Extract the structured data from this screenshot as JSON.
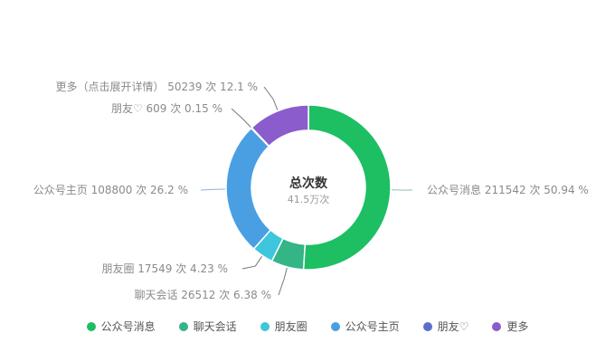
{
  "chart_data": {
    "type": "pie",
    "variant": "donut",
    "center": {
      "title": "总次数",
      "subtitle": "41.5万次"
    },
    "unit": "次",
    "slices": [
      {
        "name": "公众号消息",
        "value": 211542,
        "percent": 50.94,
        "label": "公众号消息 211542 次 50.94 %",
        "color": "#1dbf62"
      },
      {
        "name": "聊天会话",
        "value": 26512,
        "percent": 6.38,
        "label": "聊天会话 26512 次 6.38 %",
        "color": "#33b585"
      },
      {
        "name": "朋友圈",
        "value": 17549,
        "percent": 4.23,
        "label": "朋友圈 17549 次 4.23 %",
        "color": "#3ec6dc"
      },
      {
        "name": "公众号主页",
        "value": 108800,
        "percent": 26.2,
        "label": "公众号主页 108800 次 26.2 %",
        "color": "#4a9fe3"
      },
      {
        "name": "朋友♡",
        "value": 609,
        "percent": 0.15,
        "label": "朋友♡ 609 次 0.15 %",
        "color": "#5a6fc9"
      },
      {
        "name": "更多",
        "value": 50239,
        "percent": 12.1,
        "label": "更多（点击展开详情） 50239 次 12.1 %",
        "color": "#8b5ccc"
      }
    ],
    "legend_position": "bottom"
  },
  "legend": {
    "items": [
      {
        "label": "公众号消息",
        "color": "#1dbf62"
      },
      {
        "label": "聊天会话",
        "color": "#33b585"
      },
      {
        "label": "朋友圈",
        "color": "#3ec6dc"
      },
      {
        "label": "公众号主页",
        "color": "#4a9fe3"
      },
      {
        "label": "朋友♡",
        "color": "#5a6fc9"
      },
      {
        "label": "更多",
        "color": "#8b5ccc"
      }
    ]
  }
}
